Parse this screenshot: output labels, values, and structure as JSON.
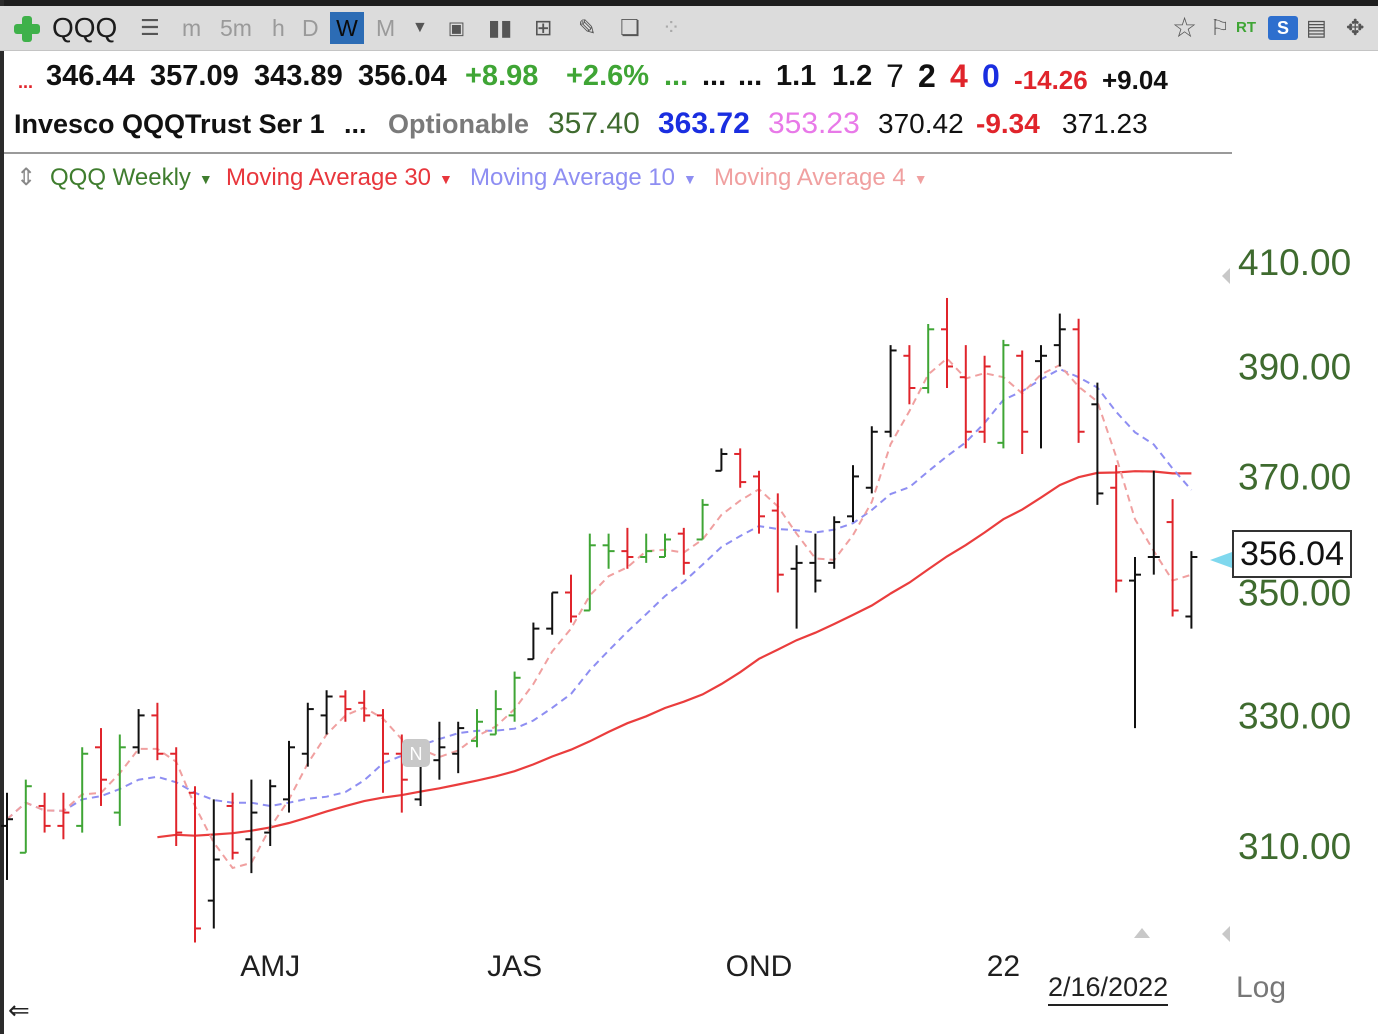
{
  "toolbar": {
    "symbol": "QQQ",
    "intervals": [
      "m",
      "5m",
      "h",
      "D",
      "W",
      "M"
    ],
    "active_interval": "W",
    "rt_label": "RT",
    "s_label": "S"
  },
  "quote": {
    "open": "346.44",
    "high": "357.09",
    "low": "343.89",
    "close": "356.04",
    "change": "+8.98",
    "change_pct": "+2.6%",
    "val1": "1.1",
    "val2": "1.2",
    "count_a": "7",
    "count_b": "2",
    "count_c": "4",
    "count_d": "0",
    "val3": "-14.26",
    "val4": "+9.04"
  },
  "info": {
    "name": "Invesco QQQTrust Ser 1",
    "ellipsis": "...",
    "optionable": "Optionable",
    "v1": "357.40",
    "v2": "363.72",
    "v3": "353.23",
    "v4": "370.42",
    "v5": "-9.34",
    "v6": "371.23"
  },
  "legend": {
    "series": "QQQ Weekly",
    "ma30": "Moving Average 30",
    "ma10": "Moving Average 10",
    "ma4": "Moving Average 4"
  },
  "colors": {
    "up_bar": "#3fa535",
    "down_bar": "#e0242b",
    "neutral_bar": "#111111",
    "ma30": "#ea3d3d",
    "ma10": "#8e8ef2",
    "ma4": "#f0a0a0",
    "axis_text": "#3f6b2f"
  },
  "last_price": "356.04",
  "date_label": "2/16/2022",
  "log_label": "Log",
  "event_marker": "N",
  "chart_data": {
    "type": "ohlc",
    "scale": "log",
    "y_ticks": [
      "410.00",
      "390.00",
      "370.00",
      "350.00",
      "330.00",
      "310.00"
    ],
    "y_tick_values": [
      410,
      390,
      370,
      350,
      330,
      310
    ],
    "x_labels": [
      "AMJ",
      "JAS",
      "OND",
      "22"
    ],
    "x_label_weeks": [
      14,
      27,
      40,
      53
    ],
    "bars": [
      {
        "o": 313,
        "h": 318,
        "l": 305,
        "c": 314,
        "s": "k"
      },
      {
        "o": 309,
        "h": 320,
        "l": 309,
        "c": 319,
        "s": "u"
      },
      {
        "o": 316,
        "h": 318,
        "l": 312,
        "c": 313,
        "s": "d"
      },
      {
        "o": 313,
        "h": 318,
        "l": 311,
        "c": 315,
        "s": "d"
      },
      {
        "o": 313,
        "h": 325,
        "l": 312,
        "c": 324,
        "s": "u"
      },
      {
        "o": 325,
        "h": 328,
        "l": 316,
        "c": 320,
        "s": "d"
      },
      {
        "o": 315,
        "h": 327,
        "l": 313,
        "c": 325,
        "s": "u"
      },
      {
        "o": 325,
        "h": 331,
        "l": 324,
        "c": 330,
        "s": "k"
      },
      {
        "o": 330,
        "h": 332,
        "l": 323,
        "c": 324,
        "s": "d"
      },
      {
        "o": 324,
        "h": 325,
        "l": 310,
        "c": 312,
        "s": "d"
      },
      {
        "o": 318,
        "h": 319,
        "l": 296,
        "c": 298,
        "s": "d"
      },
      {
        "o": 302,
        "h": 317,
        "l": 298,
        "c": 308,
        "s": "k"
      },
      {
        "o": 316,
        "h": 318,
        "l": 308,
        "c": 309,
        "s": "d"
      },
      {
        "o": 311,
        "h": 320,
        "l": 306,
        "c": 315,
        "s": "k"
      },
      {
        "o": 312,
        "h": 320,
        "l": 310,
        "c": 319,
        "s": "k"
      },
      {
        "o": 317,
        "h": 326,
        "l": 315,
        "c": 325,
        "s": "k"
      },
      {
        "o": 324,
        "h": 332,
        "l": 322,
        "c": 331,
        "s": "k"
      },
      {
        "o": 330,
        "h": 334,
        "l": 327,
        "c": 333,
        "s": "k"
      },
      {
        "o": 333,
        "h": 334,
        "l": 329,
        "c": 331,
        "s": "d"
      },
      {
        "o": 332,
        "h": 334,
        "l": 329,
        "c": 330,
        "s": "d"
      },
      {
        "o": 330,
        "h": 331,
        "l": 318,
        "c": 324,
        "s": "d"
      },
      {
        "o": 324,
        "h": 327,
        "l": 315,
        "c": 320,
        "s": "d"
      },
      {
        "o": 317,
        "h": 326,
        "l": 316,
        "c": 325,
        "s": "k"
      },
      {
        "o": 323,
        "h": 329,
        "l": 320,
        "c": 325,
        "s": "k"
      },
      {
        "o": 324,
        "h": 329,
        "l": 321,
        "c": 328,
        "s": "k"
      },
      {
        "o": 326,
        "h": 331,
        "l": 325,
        "c": 329,
        "s": "u"
      },
      {
        "o": 327,
        "h": 334,
        "l": 327,
        "c": 331,
        "s": "u"
      },
      {
        "o": 330,
        "h": 337,
        "l": 329,
        "c": 336,
        "s": "u"
      },
      {
        "o": 339,
        "h": 345,
        "l": 339,
        "c": 344,
        "s": "k"
      },
      {
        "o": 344,
        "h": 350,
        "l": 343,
        "c": 350,
        "s": "k"
      },
      {
        "o": 350,
        "h": 353,
        "l": 345,
        "c": 346,
        "s": "d"
      },
      {
        "o": 347,
        "h": 360,
        "l": 347,
        "c": 358,
        "s": "u"
      },
      {
        "o": 358,
        "h": 360,
        "l": 354,
        "c": 357,
        "s": "u"
      },
      {
        "o": 357,
        "h": 361,
        "l": 354,
        "c": 356,
        "s": "d"
      },
      {
        "o": 356,
        "h": 360,
        "l": 355,
        "c": 357,
        "s": "u"
      },
      {
        "o": 356,
        "h": 360,
        "l": 356,
        "c": 359,
        "s": "u"
      },
      {
        "o": 360,
        "h": 361,
        "l": 353,
        "c": 355,
        "s": "d"
      },
      {
        "o": 359,
        "h": 366,
        "l": 359,
        "c": 365,
        "s": "u"
      },
      {
        "o": 371,
        "h": 375,
        "l": 371,
        "c": 374,
        "s": "k"
      },
      {
        "o": 374,
        "h": 375,
        "l": 368,
        "c": 369,
        "s": "d"
      },
      {
        "o": 370,
        "h": 371,
        "l": 360,
        "c": 363,
        "s": "d"
      },
      {
        "o": 364,
        "h": 367,
        "l": 350,
        "c": 353,
        "s": "d"
      },
      {
        "o": 354,
        "h": 358,
        "l": 344,
        "c": 355,
        "s": "k"
      },
      {
        "o": 355,
        "h": 360,
        "l": 350,
        "c": 352,
        "s": "k"
      },
      {
        "o": 355,
        "h": 363,
        "l": 354,
        "c": 362,
        "s": "k"
      },
      {
        "o": 363,
        "h": 372,
        "l": 362,
        "c": 370,
        "s": "k"
      },
      {
        "o": 368,
        "h": 379,
        "l": 367,
        "c": 378,
        "s": "k"
      },
      {
        "o": 378,
        "h": 394,
        "l": 377,
        "c": 393,
        "s": "k"
      },
      {
        "o": 392,
        "h": 394,
        "l": 383,
        "c": 386,
        "s": "d"
      },
      {
        "o": 386,
        "h": 398,
        "l": 385,
        "c": 397,
        "s": "u"
      },
      {
        "o": 397,
        "h": 403,
        "l": 386,
        "c": 390,
        "s": "d"
      },
      {
        "o": 388,
        "h": 394,
        "l": 375,
        "c": 378,
        "s": "d"
      },
      {
        "o": 378,
        "h": 392,
        "l": 376,
        "c": 390,
        "s": "d"
      },
      {
        "o": 376,
        "h": 395,
        "l": 375,
        "c": 394,
        "s": "u"
      },
      {
        "o": 392,
        "h": 393,
        "l": 374,
        "c": 378,
        "s": "d"
      },
      {
        "o": 391,
        "h": 394,
        "l": 375,
        "c": 392,
        "s": "k"
      },
      {
        "o": 394,
        "h": 400,
        "l": 390,
        "c": 397,
        "s": "k"
      },
      {
        "o": 397,
        "h": 399,
        "l": 376,
        "c": 378,
        "s": "d"
      },
      {
        "o": 383,
        "h": 387,
        "l": 365,
        "c": 367,
        "s": "k"
      },
      {
        "o": 368,
        "h": 372,
        "l": 350,
        "c": 352,
        "s": "d"
      },
      {
        "o": 352,
        "h": 356,
        "l": 328,
        "c": 353,
        "s": "k"
      },
      {
        "o": 356,
        "h": 371,
        "l": 353,
        "c": 356,
        "s": "k"
      },
      {
        "o": 362,
        "h": 366,
        "l": 346,
        "c": 347,
        "s": "d"
      },
      {
        "o": 346,
        "h": 357,
        "l": 344,
        "c": 356,
        "s": "k"
      }
    ]
  }
}
